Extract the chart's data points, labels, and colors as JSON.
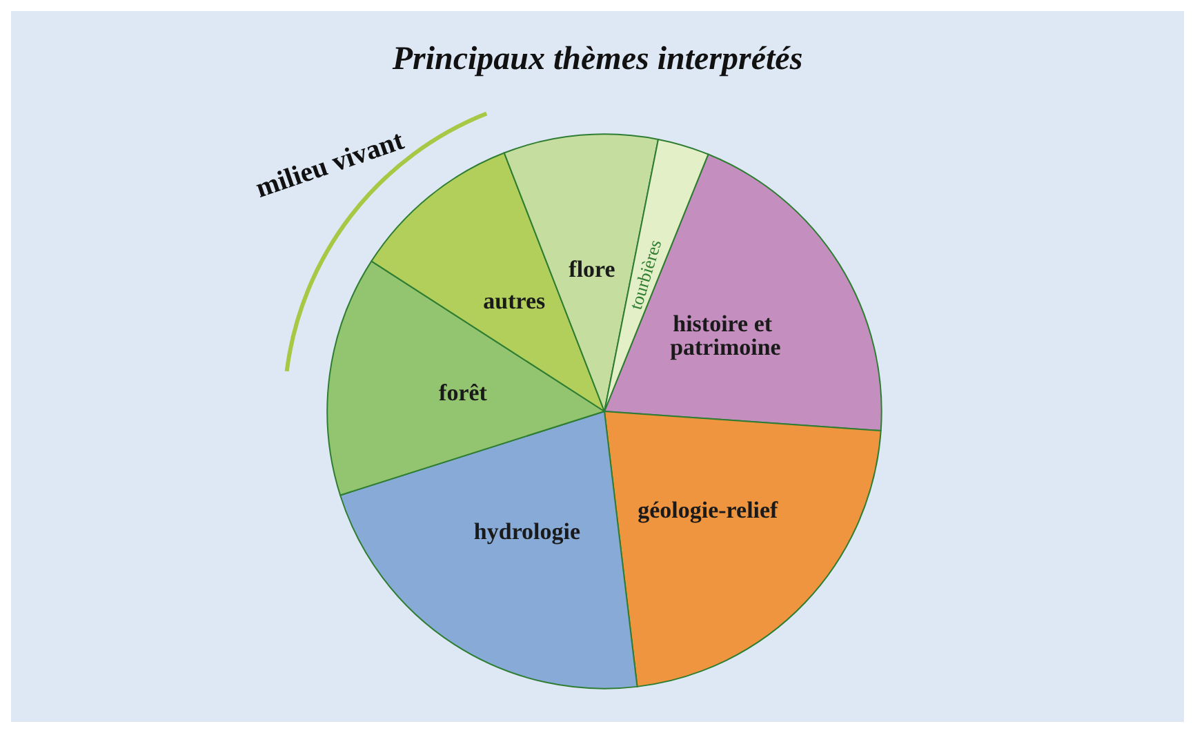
{
  "chart_data": {
    "type": "pie",
    "title": "Principaux thèmes interprétés",
    "categories": [
      "histoire et patrimoine",
      "géologie-relief",
      "hydrologie",
      "forêt",
      "autres",
      "flore",
      "tourbières"
    ],
    "values": [
      20,
      22,
      22,
      14,
      10,
      9,
      3
    ],
    "colors": [
      "#c48fbf",
      "#f0953f",
      "#88aad6",
      "#93c46f",
      "#b1cf5a",
      "#c5dd9e",
      "#e3efc6"
    ],
    "annotations": [
      "milieu vivant"
    ]
  }
}
